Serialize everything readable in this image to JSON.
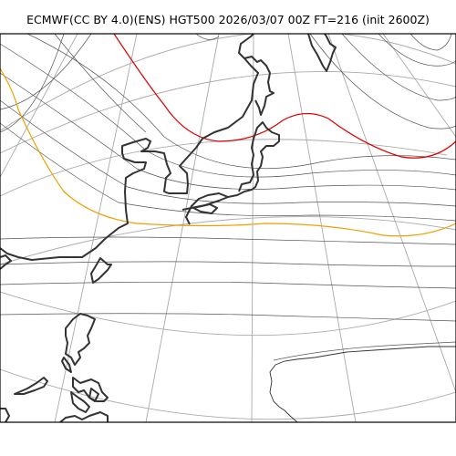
{
  "figure": {
    "title": "ECMWF(CC BY 4.0)(ENS) HGT500 2026/03/07 00Z FT=216 (init 2600Z)"
  },
  "style": {
    "contour_color": "#555555",
    "graticule_color": "#aaaaaa",
    "coastline_color": "#333333",
    "highlight_contour_red": "#e00000",
    "highlight_contour_orange": "#f0a000"
  }
}
